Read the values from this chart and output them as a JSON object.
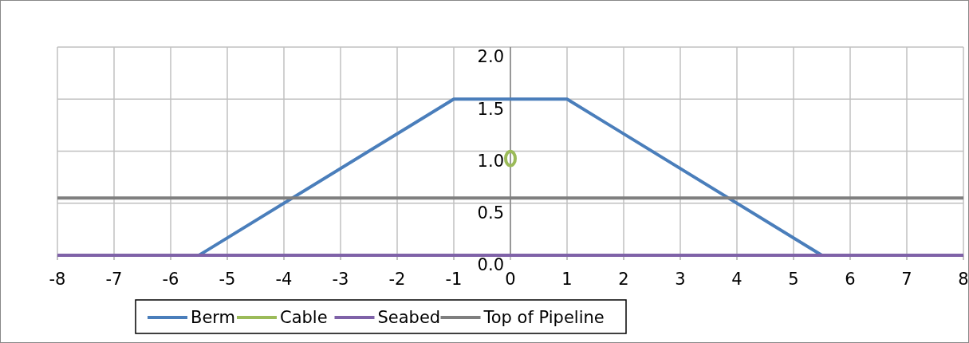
{
  "chart_data": {
    "type": "line",
    "xlim": [
      -8,
      8
    ],
    "xticks": [
      -8,
      -7,
      -6,
      -5,
      -4,
      -3,
      -2,
      -1,
      0,
      1,
      2,
      3,
      4,
      5,
      6,
      7,
      8
    ],
    "ylim": [
      0,
      2
    ],
    "yticks": [
      {
        "value": 0,
        "label": "0.0"
      },
      {
        "value": 0.5,
        "label": "0.5"
      },
      {
        "value": 1,
        "label": "1.0"
      },
      {
        "value": 1.5,
        "label": "1.5"
      },
      {
        "value": 2,
        "label": "2.0"
      }
    ],
    "grid": true,
    "legend": "bottom",
    "line_style": "solid",
    "series": [
      {
        "name": "Berm",
        "color": "#4a7ebb",
        "x": [
          -5.5,
          -1,
          1,
          5.5
        ],
        "values": [
          0,
          1.5,
          1.5,
          0
        ]
      },
      {
        "name": "Cable",
        "color": "#9bbb59",
        "type": "scatter",
        "marker": "circle",
        "x": [
          0
        ],
        "values": [
          0.93
        ]
      },
      {
        "name": "Seabed",
        "color": "#7f62a8",
        "x": [
          -8,
          8
        ],
        "values": [
          0,
          0
        ]
      },
      {
        "name": "Top of Pipeline",
        "color": "#7f7f7f",
        "x": [
          -8,
          8
        ],
        "values": [
          0.55,
          0.55
        ]
      }
    ]
  }
}
